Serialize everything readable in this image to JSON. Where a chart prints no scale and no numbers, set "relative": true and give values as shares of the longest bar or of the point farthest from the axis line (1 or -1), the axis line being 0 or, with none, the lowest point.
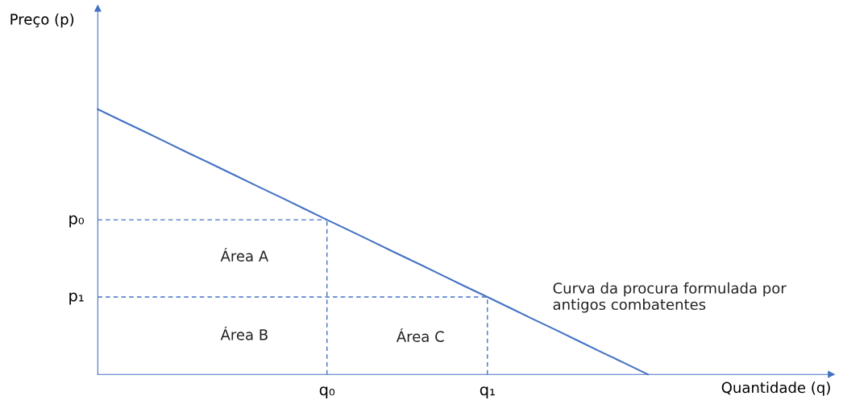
{
  "chart_data": {
    "type": "line",
    "relative": true,
    "xlabel": "Quantidade (q)",
    "categories": [
      null,
      null,
      null,
      null,
      null,
      null,
      null,
      null,
      null,
      null,
      "q₀",
      null,
      null,
      null,
      null,
      null,
      null,
      "q₁",
      null,
      null,
      null,
      null,
      null,
      null,
      null,
      null,
      null,
      null,
      null,
      null,
      null,
      null,
      null
    ],
    "marker": "none",
    "series": [
      {
        "color": "#4472c4",
        "line_style": "solid",
        "values": [
          1,
          0.958,
          0.917,
          0.875,
          0.833,
          0.792,
          0.75,
          0.708,
          0.667,
          0.625,
          0.583,
          0.542,
          0.5,
          0.458,
          0.417,
          0.375,
          0.333,
          0.292,
          0.25,
          0.208,
          0.167,
          0.125,
          0.083,
          0.042,
          0,
          null,
          null,
          null,
          null,
          null,
          null,
          null,
          null
        ]
      },
      {
        "name": "p₀",
        "color": "#4472c4",
        "line_style": "dashed",
        "values": [
          0.583,
          0.583,
          0.583,
          0.583,
          0.583,
          0.583,
          0.583,
          0.583,
          0.583,
          0.583,
          0.583,
          null,
          null,
          null,
          null,
          null,
          null,
          null,
          null,
          null,
          null,
          null,
          null,
          null,
          null,
          null,
          null,
          null,
          null,
          null,
          null,
          null,
          null
        ]
      },
      {
        "color": "#4472c4",
        "line_style": "dashed",
        "x": [
          "q₀",
          "q₀"
        ],
        "values": [
          0,
          0.583
        ]
      },
      {
        "name": "p₁",
        "color": "#4472c4",
        "line_style": "dashed",
        "values": [
          0.292,
          0.292,
          0.292,
          0.292,
          0.292,
          0.292,
          0.292,
          0.292,
          0.292,
          0.292,
          0.292,
          0.292,
          0.292,
          0.292,
          0.292,
          0.292,
          0.292,
          0.292,
          null,
          null,
          null,
          null,
          null,
          null,
          null,
          null,
          null,
          null,
          null,
          null,
          null,
          null,
          null
        ]
      },
      {
        "color": "#4472c4",
        "line_style": "dashed",
        "x": [
          "q₁",
          "q₁"
        ],
        "values": [
          0,
          0.292
        ]
      }
    ],
    "annotations": [
      "Preço (p)",
      "Área A",
      "Área B",
      "Área C",
      "Curva da procura formulada por\nantigos combatentes"
    ]
  }
}
